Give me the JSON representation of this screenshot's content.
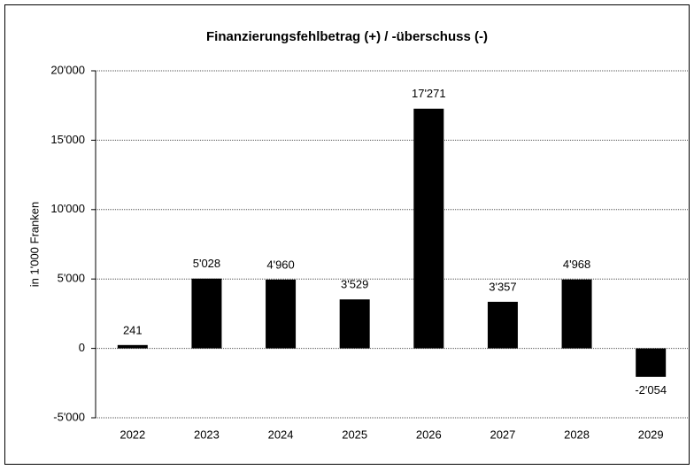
{
  "chart_data": {
    "type": "bar",
    "title": "Finanzierungsfehlbetrag (+) / -überschuss (-)",
    "y_label": "in 1'000 Franken",
    "categories": [
      "2022",
      "2023",
      "2024",
      "2025",
      "2026",
      "2027",
      "2028",
      "2029"
    ],
    "values": [
      241,
      5028,
      4960,
      3529,
      17271,
      3357,
      4968,
      -2054
    ],
    "value_labels": [
      "241",
      "5'028",
      "4'960",
      "3'529",
      "17'271",
      "3'357",
      "4'968",
      "-2'054"
    ],
    "color": "#000000",
    "ylim": [
      -5000,
      20000
    ],
    "yticks": [
      {
        "value": -5000,
        "label": "-5'000"
      },
      0,
      {
        "value": 5000,
        "label": "5'000"
      },
      {
        "value": 10000,
        "label": "10'000"
      },
      {
        "value": 15000,
        "label": "15'000"
      },
      {
        "value": 20000,
        "label": "20'000"
      }
    ],
    "grid": true
  }
}
